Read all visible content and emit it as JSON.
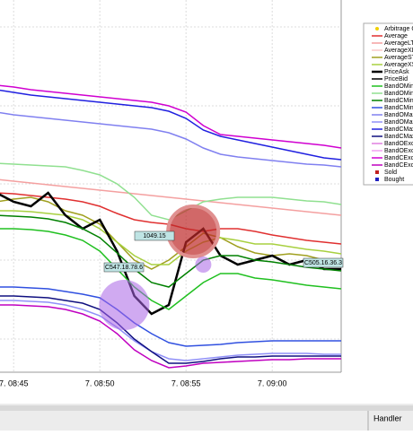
{
  "chart_data": {
    "type": "line",
    "categories": [
      null,
      "7. 08:45",
      null,
      null,
      null,
      null,
      "7. 08:50",
      null,
      null,
      null,
      null,
      "7. 08:55",
      null,
      null,
      null,
      null,
      "7. 09:00",
      null,
      null,
      null,
      null
    ],
    "ylim": [
      415,
      30
    ],
    "series": [
      {
        "name": "Arbitrage O",
        "color": "#f0d000",
        "kind": "dot"
      },
      {
        "name": "Average",
        "color": "#e03030",
        "values": [
          215,
          216,
          218,
          220,
          222,
          225,
          230,
          238,
          245,
          248,
          250,
          255,
          258,
          255,
          255,
          258,
          262,
          265,
          268,
          270,
          272
        ]
      },
      {
        "name": "AverageLT",
        "color": "#f4a0a0",
        "values": [
          200,
          202,
          204,
          206,
          208,
          210,
          212,
          214,
          216,
          218,
          220,
          222,
          224,
          226,
          228,
          230,
          232,
          234,
          236,
          238,
          240
        ]
      },
      {
        "name": "AverageXL",
        "color": "#f8c8c8"
      },
      {
        "name": "AverageST",
        "color": "#a0a020",
        "values": [
          225,
          222,
          220,
          225,
          235,
          240,
          250,
          270,
          290,
          300,
          290,
          275,
          260,
          265,
          275,
          282,
          285,
          283,
          285,
          290,
          290
        ]
      },
      {
        "name": "AverageXS",
        "color": "#a8d040",
        "values": [
          235,
          235,
          236,
          238,
          240,
          245,
          255,
          270,
          285,
          295,
          295,
          280,
          270,
          265,
          268,
          272,
          272,
          275,
          278,
          280,
          283
        ]
      },
      {
        "name": "PriceAsk",
        "color": "#000000",
        "width": 2.5,
        "values": [
          215,
          225,
          230,
          215,
          240,
          255,
          245,
          280,
          330,
          350,
          340,
          270,
          255,
          285,
          295,
          290,
          285,
          295,
          290,
          300,
          300
        ]
      },
      {
        "name": "PriceBid",
        "color": "#000000"
      },
      {
        "name": "BandOMinT",
        "color": "#20c020",
        "values": [
          255,
          255,
          256,
          258,
          262,
          268,
          280,
          300,
          320,
          335,
          345,
          330,
          315,
          305,
          305,
          310,
          312,
          315,
          318,
          320,
          322
        ]
      },
      {
        "name": "BandOMinE",
        "color": "#90e090",
        "values": [
          182,
          183,
          184,
          185,
          186,
          190,
          195,
          205,
          220,
          240,
          245,
          235,
          225,
          222,
          220,
          220,
          220,
          222,
          224,
          225,
          228
        ]
      },
      {
        "name": "BandCMinT",
        "color": "#008000",
        "values": [
          240,
          241,
          242,
          244,
          248,
          255,
          265,
          282,
          300,
          315,
          320,
          305,
          290,
          285,
          285,
          290,
          292,
          295,
          298,
          300,
          302
        ]
      },
      {
        "name": "BandCMinE",
        "color": "#3050e0",
        "values": [
          320,
          320,
          321,
          322,
          325,
          328,
          332,
          345,
          360,
          372,
          382,
          386,
          385,
          384,
          382,
          381,
          380,
          380,
          380,
          380,
          380
        ]
      },
      {
        "name": "BandOMaxT",
        "color": "#8080f0",
        "values": [
          125,
          128,
          130,
          132,
          134,
          136,
          138,
          140,
          142,
          144,
          148,
          155,
          165,
          172,
          175,
          177,
          179,
          181,
          183,
          184,
          186
        ]
      },
      {
        "name": "BandOMaxE",
        "color": "#9090f8",
        "values": [
          335,
          335,
          336,
          337,
          340,
          345,
          352,
          365,
          380,
          392,
          400,
          402,
          400,
          398,
          396,
          395,
          394,
          394,
          394,
          395,
          395
        ]
      },
      {
        "name": "BandCMaxT",
        "color": "#2020e0",
        "values": [
          100,
          103,
          106,
          108,
          110,
          112,
          114,
          116,
          118,
          120,
          124,
          132,
          145,
          152,
          156,
          160,
          164,
          168,
          172,
          176,
          178
        ]
      },
      {
        "name": "BandCMaxE",
        "color": "#101080",
        "values": [
          330,
          330,
          331,
          332,
          335,
          338,
          345,
          360,
          378,
          392,
          405,
          405,
          403,
          400,
          398,
          398,
          397,
          397,
          397,
          397,
          397
        ]
      },
      {
        "name": "BandOExcT",
        "color": "#e080e0"
      },
      {
        "name": "BandOExcE",
        "color": "#f0a0f0"
      },
      {
        "name": "BandCExcT",
        "color": "#d000d0",
        "values": [
          95,
          97,
          100,
          102,
          104,
          106,
          108,
          110,
          112,
          114,
          118,
          125,
          140,
          150,
          152,
          154,
          156,
          158,
          160,
          162,
          165
        ]
      },
      {
        "name": "BandCExcE",
        "color": "#c000c0",
        "values": [
          340,
          340,
          341,
          342,
          345,
          350,
          358,
          372,
          390,
          402,
          410,
          408,
          405,
          404,
          403,
          402,
          401,
          401,
          400,
          400,
          400
        ]
      },
      {
        "name": "Sold",
        "color": "#c02020",
        "kind": "marker",
        "values": [
          null,
          null,
          null,
          null,
          null,
          null,
          null,
          null,
          null,
          null,
          null,
          258,
          null,
          null,
          null,
          null,
          null,
          null,
          null,
          null,
          null
        ]
      },
      {
        "name": "Bought",
        "color": "#2020c0",
        "kind": "marker",
        "values": [
          null,
          null,
          null,
          null,
          null,
          null,
          null,
          340,
          null,
          null,
          null,
          null,
          295,
          null,
          null,
          null,
          null,
          null,
          null,
          null,
          null
        ]
      }
    ],
    "annotations": [
      "1049.15",
      "C547.18.78.6",
      "C505.16.36.3"
    ],
    "panel": {
      "header": "Handler"
    }
  }
}
